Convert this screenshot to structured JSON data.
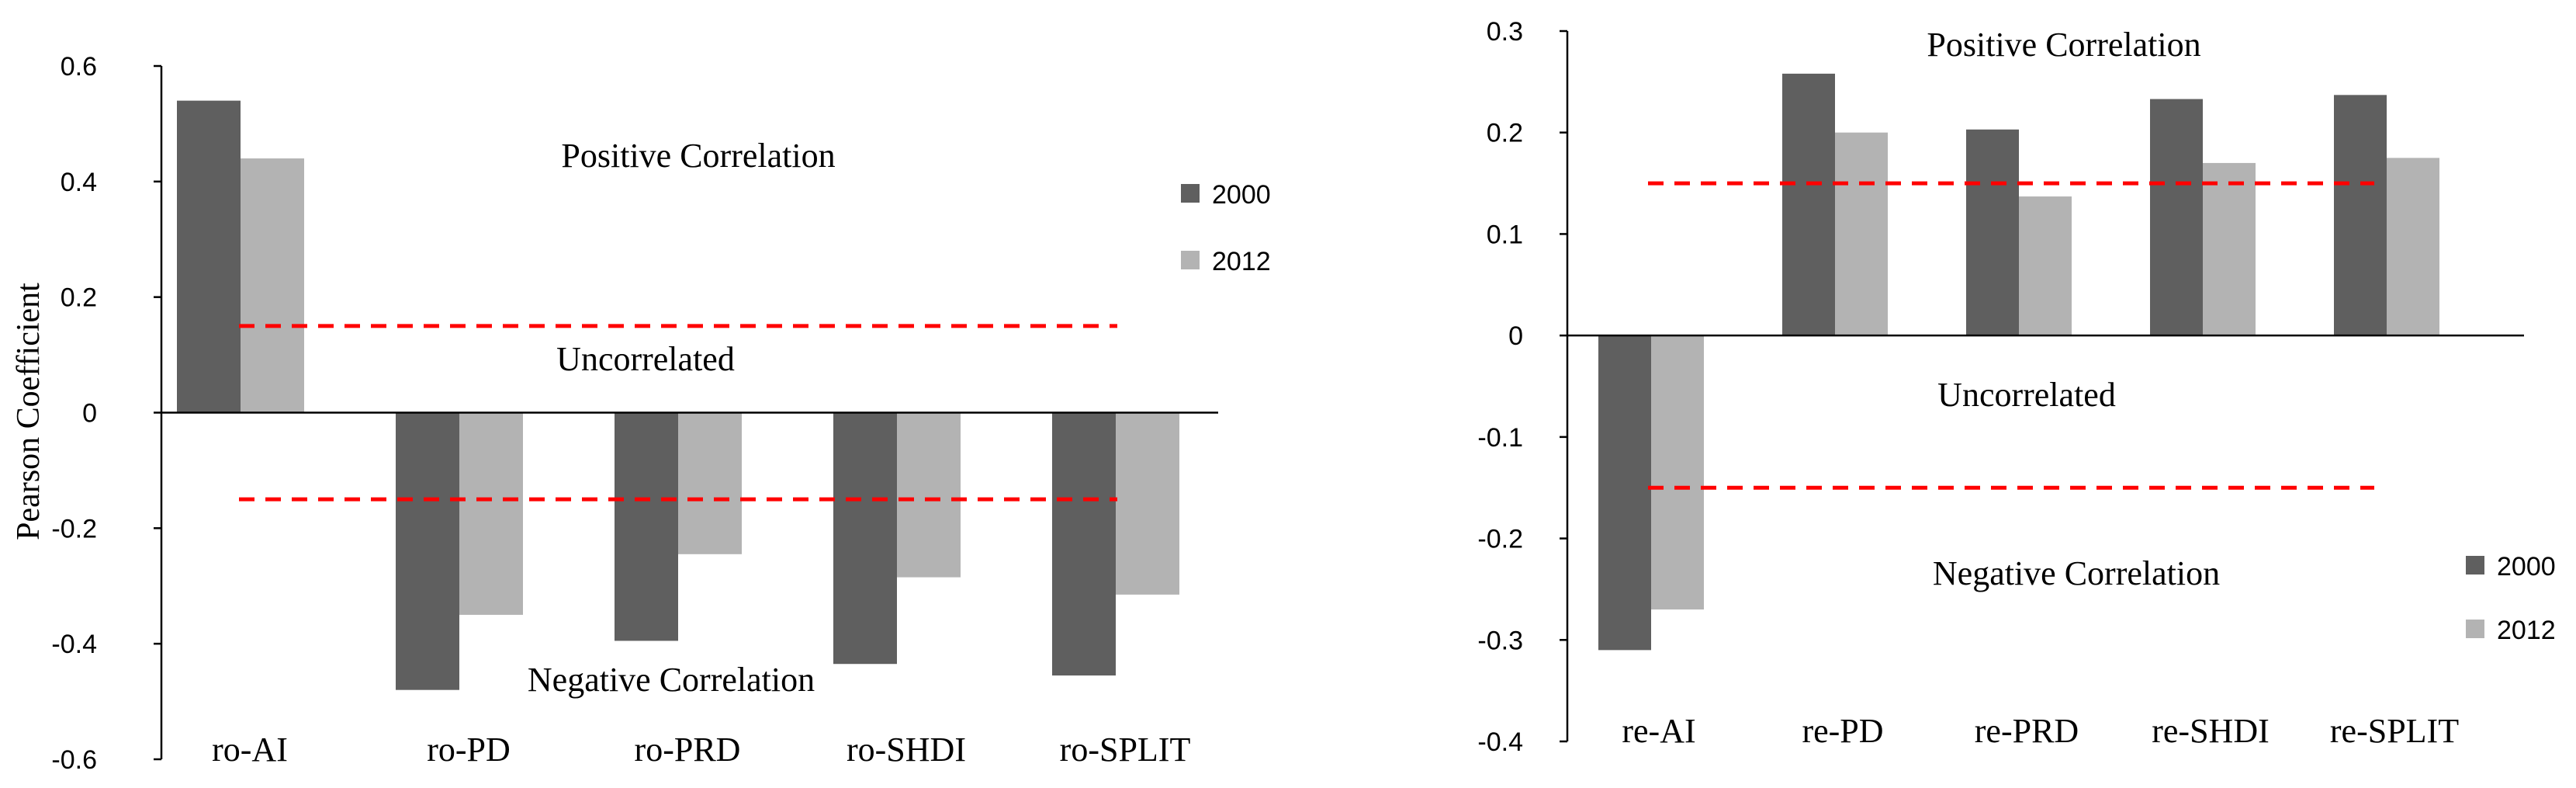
{
  "chart_data": [
    {
      "type": "bar",
      "ylabel": "Pearson Coefficient",
      "xlabel": "",
      "ylim": [
        -0.6,
        0.6
      ],
      "yticks": [
        "0.6",
        "0.4",
        "0.2",
        "0",
        "-0.2",
        "-0.4",
        "-0.6"
      ],
      "ytick_values": [
        0.6,
        0.4,
        0.2,
        0,
        -0.2,
        -0.4,
        -0.6
      ],
      "categories": [
        "ro-AI",
        "ro-PD",
        "ro-PRD",
        "ro-SHDI",
        "ro-SPLIT"
      ],
      "series": [
        {
          "name": "2000",
          "color": "#5f5f5f",
          "values": [
            0.54,
            -0.48,
            -0.395,
            -0.435,
            -0.455
          ]
        },
        {
          "name": "2012",
          "color": "#b3b3b3",
          "values": [
            0.44,
            -0.35,
            -0.245,
            -0.285,
            -0.315
          ]
        }
      ],
      "thresholds": [
        0.15,
        -0.15
      ],
      "threshold_color": "#ff0000",
      "annotations": {
        "positive": "Positive Correlation",
        "uncorrelated": "Uncorrelated",
        "negative": "Negative Correlation"
      },
      "legend_position": "top-right"
    },
    {
      "type": "bar",
      "ylabel": "",
      "xlabel": "",
      "ylim": [
        -0.4,
        0.3
      ],
      "yticks": [
        "0.3",
        "0.2",
        "0.1",
        "0",
        "-0.1",
        "-0.2",
        "-0.3",
        "-0.4"
      ],
      "ytick_values": [
        0.3,
        0.2,
        0.1,
        0,
        -0.1,
        -0.2,
        -0.3,
        -0.4
      ],
      "categories": [
        "re-AI",
        "re-PD",
        "re-PRD",
        "re-SHDI",
        "re-SPLIT"
      ],
      "series": [
        {
          "name": "2000",
          "color": "#5f5f5f",
          "values": [
            -0.31,
            0.258,
            0.203,
            0.233,
            0.237
          ]
        },
        {
          "name": "2012",
          "color": "#b3b3b3",
          "values": [
            -0.27,
            0.2,
            0.137,
            0.17,
            0.175
          ]
        }
      ],
      "thresholds": [
        0.15,
        -0.15
      ],
      "threshold_color": "#ff0000",
      "annotations": {
        "positive": "Positive Correlation",
        "uncorrelated": "Uncorrelated",
        "negative": "Negative Correlation"
      },
      "legend_position": "right"
    }
  ]
}
